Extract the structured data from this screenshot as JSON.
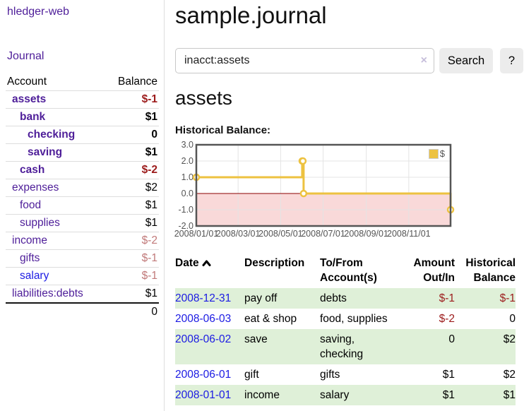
{
  "app": {
    "brand": "hledger-web",
    "nav": {
      "journal": "Journal"
    }
  },
  "sidebar": {
    "accounts": {
      "headers": {
        "account": "Account",
        "balance": "Balance"
      },
      "rows": [
        {
          "name": "assets",
          "balance": "$-1",
          "depth": 1
        },
        {
          "name": "bank",
          "balance": "$1",
          "depth": 2
        },
        {
          "name": "checking",
          "balance": "0",
          "depth": 3
        },
        {
          "name": "saving",
          "balance": "$1",
          "depth": 3
        },
        {
          "name": "cash",
          "balance": "$-2",
          "depth": 2
        },
        {
          "name": "expenses",
          "balance": "$2",
          "depth": 1
        },
        {
          "name": "food",
          "balance": "$1",
          "depth": 2
        },
        {
          "name": "supplies",
          "balance": "$1",
          "depth": 2
        },
        {
          "name": "income",
          "balance": "$-2",
          "depth": 1
        },
        {
          "name": "gifts",
          "balance": "$-1",
          "depth": 2
        },
        {
          "name": "salary",
          "balance": "$-1",
          "depth": 2
        },
        {
          "name": "liabilities:debts",
          "balance": "$1",
          "depth": 1
        }
      ],
      "total": "0"
    }
  },
  "main": {
    "title": "sample.journal",
    "search": {
      "value": "inacct:assets",
      "clear_icon": "×",
      "search_button": "Search",
      "help_button": "?"
    },
    "account_heading": "assets",
    "chart_label": "Historical Balance:"
  },
  "chart_data": {
    "type": "line",
    "step": true,
    "legend": "$",
    "legend_position": "top-right",
    "series_color": "#edc240",
    "negative_fill": "#f9d9d9",
    "zero_line_color": "#8b0000",
    "grid": true,
    "xrange": [
      "2008-01-01",
      "2008-12-31"
    ],
    "ylim": [
      -2,
      3
    ],
    "points": [
      {
        "date": "2008-01-01",
        "value": 1
      },
      {
        "date": "2008-06-01",
        "value": 2
      },
      {
        "date": "2008-06-02",
        "value": 2
      },
      {
        "date": "2008-06-03",
        "value": 0
      },
      {
        "date": "2008-12-31",
        "value": -1
      }
    ],
    "yticks": [
      {
        "value": 3,
        "label": "3.0"
      },
      {
        "value": 2,
        "label": "2.0"
      },
      {
        "value": 1,
        "label": "1.0"
      },
      {
        "value": 0,
        "label": "0.0"
      },
      {
        "value": -1,
        "label": "-1.0"
      },
      {
        "value": -2,
        "label": "-2.0"
      }
    ],
    "xticks": [
      {
        "date": "2008-01-01",
        "label": "2008/01/01"
      },
      {
        "date": "2008-03-01",
        "label": "2008/03/01"
      },
      {
        "date": "2008-05-01",
        "label": "2008/05/01"
      },
      {
        "date": "2008-07-01",
        "label": "2008/07/01"
      },
      {
        "date": "2008-09-01",
        "label": "2008/09/01"
      },
      {
        "date": "2008-11-01",
        "label": "2008/11/01"
      }
    ]
  },
  "register": {
    "headers": {
      "date": "Date",
      "sort_icon": "chevron-up",
      "description": "Description",
      "tofrom_line1": "To/From",
      "tofrom_line2": "Account(s)",
      "amount_line1": "Amount",
      "amount_line2": "Out/In",
      "balance_line1": "Historical",
      "balance_line2": "Balance"
    },
    "rows": [
      {
        "date": "2008-12-31",
        "description": "pay off",
        "accounts": "debts",
        "amount": "$-1",
        "balance": "$-1"
      },
      {
        "date": "2008-06-03",
        "description": "eat & shop",
        "accounts": "food, supplies",
        "amount": "$-2",
        "balance": "0"
      },
      {
        "date": "2008-06-02",
        "description": "save",
        "accounts": "saving,\nchecking",
        "amount": "0",
        "balance": "$2"
      },
      {
        "date": "2008-06-01",
        "description": "gift",
        "accounts": "gifts",
        "amount": "$1",
        "balance": "$2"
      },
      {
        "date": "2008-01-01",
        "description": "income",
        "accounts": "salary",
        "amount": "$1",
        "balance": "$1"
      }
    ]
  }
}
